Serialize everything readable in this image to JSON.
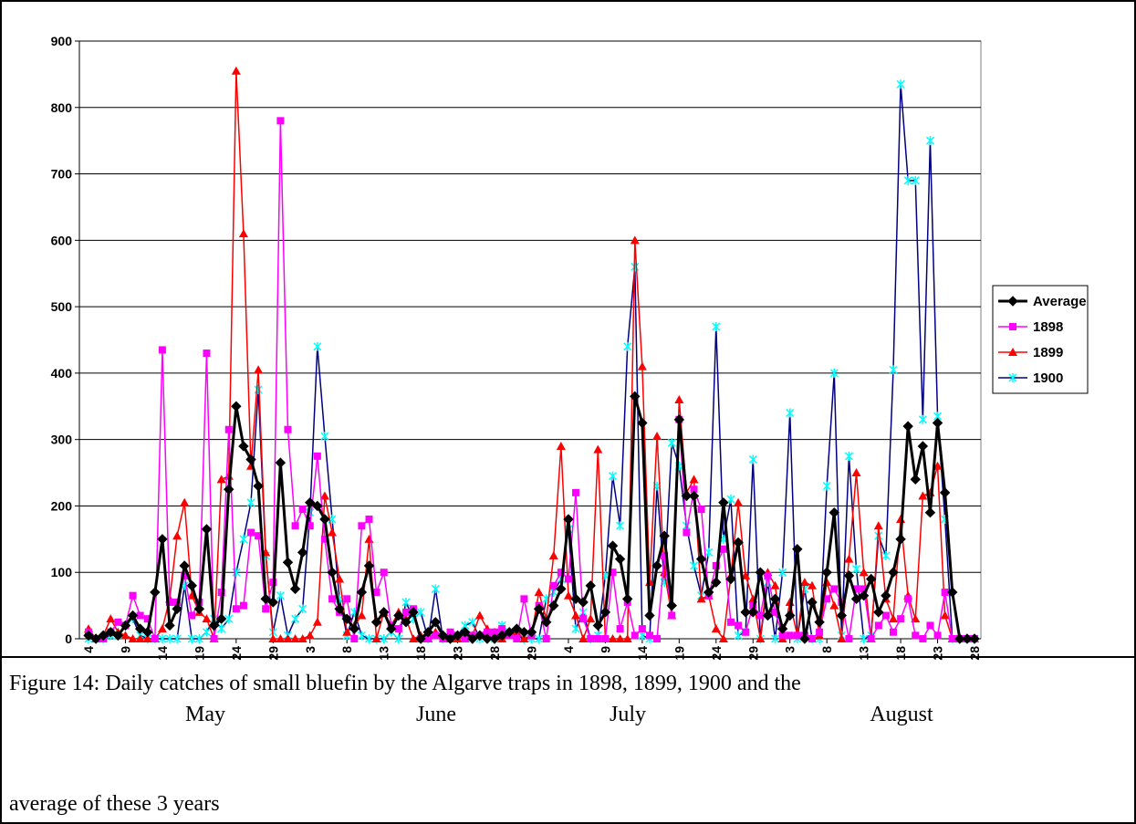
{
  "chart_data": {
    "type": "line",
    "categories": [
      "4",
      null,
      null,
      null,
      null,
      "9",
      null,
      null,
      null,
      null,
      "14",
      null,
      null,
      null,
      null,
      "19",
      null,
      null,
      null,
      null,
      "24",
      null,
      null,
      null,
      null,
      "29",
      null,
      null,
      null,
      null,
      "3",
      null,
      null,
      null,
      null,
      "8",
      null,
      null,
      null,
      null,
      "13",
      null,
      null,
      null,
      null,
      "18",
      null,
      null,
      null,
      null,
      "23",
      null,
      null,
      null,
      null,
      "28",
      null,
      null,
      null,
      null,
      "29",
      null,
      null,
      null,
      null,
      "4",
      null,
      null,
      null,
      null,
      "9",
      null,
      null,
      null,
      null,
      "14",
      null,
      null,
      null,
      null,
      "19",
      null,
      null,
      null,
      null,
      "24",
      null,
      null,
      null,
      null,
      "29",
      null,
      null,
      null,
      null,
      "3",
      null,
      null,
      null,
      null,
      "8",
      null,
      null,
      null,
      null,
      "13",
      null,
      null,
      null,
      null,
      "18",
      null,
      null,
      null,
      null,
      "23",
      null,
      null,
      null,
      null,
      "28"
    ],
    "series": [
      {
        "name": "Average",
        "color": "#000000",
        "marker": "diamond",
        "values": [
          5,
          0,
          5,
          10,
          5,
          20,
          35,
          15,
          10,
          70,
          150,
          20,
          45,
          110,
          80,
          45,
          165,
          20,
          30,
          225,
          350,
          290,
          270,
          230,
          60,
          55,
          265,
          115,
          75,
          130,
          205,
          200,
          180,
          100,
          45,
          30,
          15,
          70,
          110,
          25,
          40,
          15,
          35,
          25,
          40,
          0,
          10,
          25,
          5,
          0,
          5,
          10,
          0,
          5,
          0,
          0,
          5,
          10,
          15,
          10,
          10,
          45,
          25,
          50,
          75,
          180,
          60,
          55,
          80,
          20,
          40,
          140,
          120,
          60,
          365,
          325,
          35,
          110,
          155,
          50,
          330,
          215,
          215,
          120,
          70,
          85,
          205,
          90,
          145,
          40,
          40,
          100,
          35,
          60,
          15,
          35,
          135,
          0,
          55,
          25,
          100,
          190,
          35,
          95,
          60,
          65,
          90,
          40,
          65,
          100,
          150,
          320,
          240,
          290,
          190,
          325,
          220,
          70,
          0,
          0,
          0
        ]
      },
      {
        "name": "1898",
        "color": "#ff00ff",
        "marker": "square",
        "values": [
          10,
          0,
          0,
          10,
          25,
          20,
          65,
          35,
          30,
          0,
          435,
          55,
          55,
          95,
          35,
          55,
          430,
          0,
          70,
          315,
          45,
          50,
          160,
          155,
          45,
          85,
          780,
          315,
          170,
          195,
          170,
          275,
          150,
          60,
          40,
          60,
          0,
          170,
          180,
          70,
          100,
          20,
          15,
          40,
          45,
          0,
          0,
          5,
          0,
          10,
          5,
          0,
          5,
          5,
          10,
          10,
          15,
          5,
          0,
          60,
          5,
          50,
          0,
          80,
          100,
          90,
          220,
          30,
          0,
          0,
          0,
          100,
          15,
          55,
          5,
          15,
          5,
          0,
          125,
          35,
          330,
          160,
          225,
          195,
          65,
          110,
          135,
          25,
          20,
          10,
          50,
          35,
          95,
          40,
          5,
          5,
          5,
          5,
          0,
          10,
          60,
          75,
          55,
          0,
          75,
          75,
          0,
          20,
          35,
          10,
          30,
          60,
          5,
          0,
          20,
          5,
          70,
          0,
          0,
          0,
          0
        ]
      },
      {
        "name": "1899",
        "color": "#ff0000",
        "marker": "triangle",
        "values": [
          15,
          0,
          5,
          30,
          10,
          5,
          0,
          0,
          0,
          0,
          15,
          60,
          155,
          205,
          65,
          40,
          30,
          0,
          240,
          245,
          855,
          610,
          260,
          405,
          130,
          0,
          0,
          0,
          0,
          0,
          5,
          25,
          215,
          160,
          90,
          10,
          20,
          35,
          150,
          0,
          40,
          20,
          40,
          30,
          0,
          5,
          0,
          10,
          5,
          0,
          0,
          0,
          5,
          35,
          15,
          10,
          0,
          5,
          10,
          0,
          5,
          70,
          30,
          125,
          290,
          65,
          35,
          0,
          30,
          285,
          0,
          0,
          0,
          0,
          600,
          410,
          85,
          305,
          100,
          35,
          360,
          220,
          240,
          60,
          65,
          15,
          0,
          95,
          205,
          95,
          60,
          0,
          100,
          80,
          0,
          55,
          5,
          85,
          80,
          5,
          85,
          50,
          0,
          120,
          250,
          100,
          0,
          170,
          60,
          30,
          180,
          65,
          30,
          215,
          220,
          260,
          35,
          0,
          0,
          0,
          0
        ]
      },
      {
        "name": "1900",
        "color": "#000080",
        "marker_color": "#00ffff",
        "marker": "star",
        "values": [
          0,
          0,
          0,
          5,
          5,
          20,
          30,
          5,
          0,
          0,
          0,
          0,
          0,
          80,
          0,
          0,
          10,
          30,
          15,
          30,
          100,
          150,
          205,
          375,
          125,
          10,
          65,
          5,
          30,
          45,
          190,
          440,
          305,
          180,
          60,
          5,
          40,
          5,
          0,
          0,
          0,
          10,
          0,
          55,
          30,
          40,
          0,
          75,
          0,
          0,
          5,
          20,
          25,
          0,
          5,
          0,
          20,
          10,
          5,
          0,
          0,
          0,
          60,
          70,
          90,
          165,
          15,
          40,
          0,
          5,
          95,
          245,
          170,
          440,
          560,
          5,
          0,
          230,
          85,
          295,
          260,
          170,
          110,
          65,
          130,
          470,
          150,
          210,
          5,
          10,
          270,
          0,
          85,
          0,
          100,
          340,
          0,
          75,
          0,
          0,
          230,
          400,
          5,
          275,
          105,
          0,
          5,
          155,
          125,
          405,
          835,
          690,
          690,
          330,
          750,
          335,
          180,
          0,
          0,
          0,
          0
        ]
      }
    ],
    "ylim": [
      0,
      900
    ],
    "yticks": [
      0,
      100,
      200,
      300,
      400,
      500,
      600,
      700,
      800,
      900
    ],
    "grid": true,
    "legend": "right",
    "month_labels": [
      "May",
      "June",
      "July",
      "August"
    ]
  },
  "caption": [
    "Figure 14: Daily catches of small bluefin by the Algarve traps in 1898, 1899, 1900 and the",
    "average of these 3 years"
  ]
}
